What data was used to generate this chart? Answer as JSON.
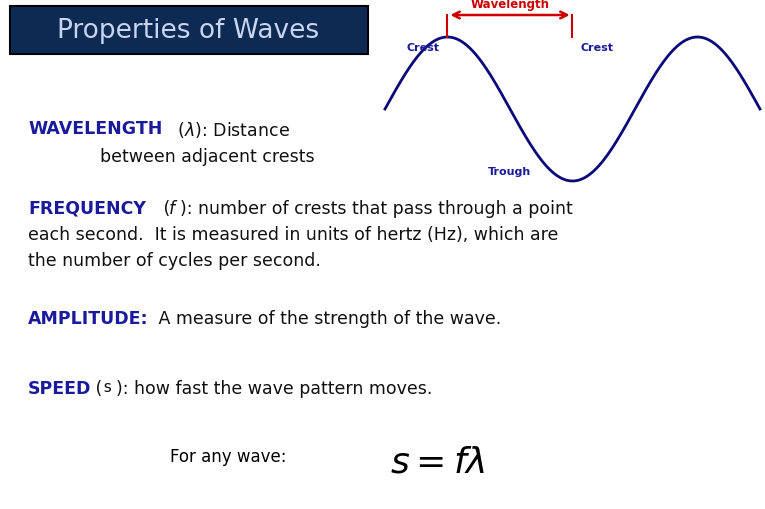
{
  "title": "Properties of Waves",
  "title_bg_color": "#0d2b52",
  "title_text_color": "#c8d4f0",
  "body_bg_color": "#ffffff",
  "wave_color": "#0a0a7a",
  "wavelength_arrow_color": "#cc0000",
  "label_color": "#1a1a9c",
  "dark_blue": "#1a1a9c",
  "crest_label": "Crest",
  "trough_label": "Trough",
  "wavelength_label": "Wavelength"
}
